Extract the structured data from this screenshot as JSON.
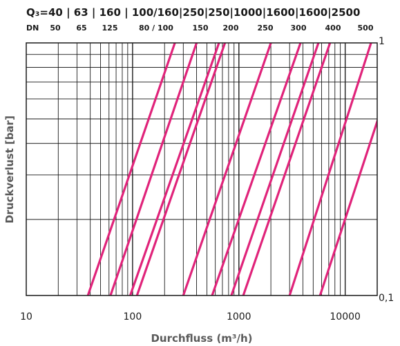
{
  "chart_data": {
    "type": "line",
    "title": "",
    "xlabel": "Durchfluss (m³/h)",
    "ylabel": "Druckverlust [bar]",
    "xscale": "log",
    "yscale": "log",
    "xlim": [
      10,
      20000
    ],
    "ylim": [
      0.1,
      1
    ],
    "grid": true,
    "x_ticks": [
      "10",
      "100",
      "1000",
      "10000"
    ],
    "y_ticks": [
      "0,1",
      "1"
    ],
    "header": {
      "q3_prefix": "Q₃=",
      "q3_text": "40 | 63 | 160 | 100/160|250|250|1000|1600|1600|2500",
      "dn_prefix": "DN",
      "dn_values": [
        "50",
        "65",
        "125",
        "80 / 100",
        "150",
        "200",
        "250",
        "300",
        "400",
        "500"
      ]
    },
    "line_color": "#e0237a",
    "series": [
      {
        "x": [
          38,
          250
        ]
      },
      {
        "x": [
          62,
          400
        ]
      },
      {
        "x": [
          95,
          650
        ]
      },
      {
        "x": [
          110,
          740
        ]
      },
      {
        "x": [
          300,
          2000
        ]
      },
      {
        "x": [
          560,
          3800
        ]
      },
      {
        "x": [
          850,
          5600
        ]
      },
      {
        "x": [
          1100,
          7200
        ]
      },
      {
        "x": [
          3000,
          17500
        ]
      },
      {
        "x": [
          5800,
          35000
        ]
      }
    ]
  }
}
